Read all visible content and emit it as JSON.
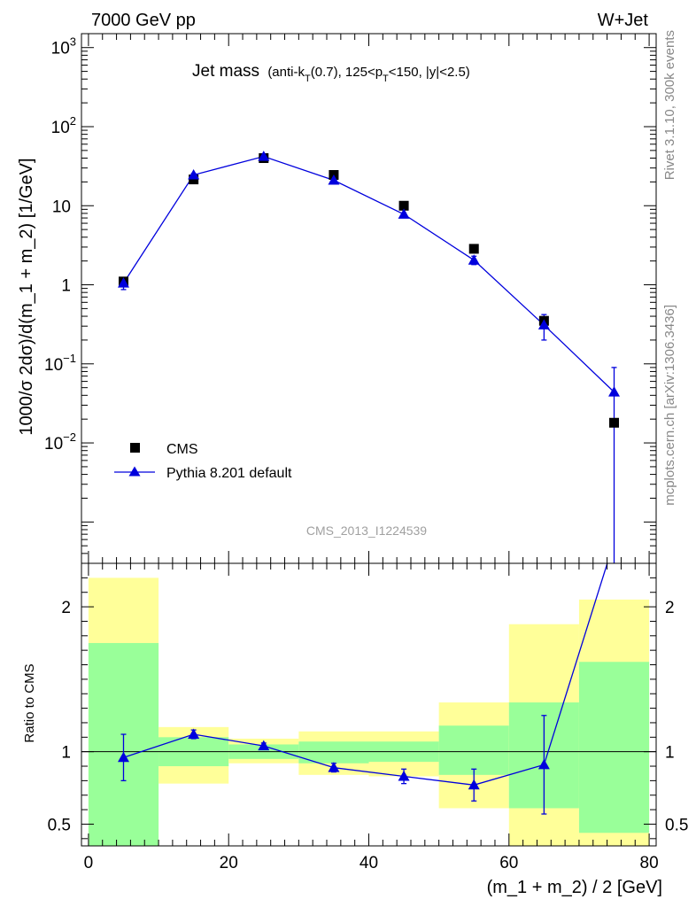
{
  "header": {
    "left_label": "7000 GeV pp",
    "right_label": "W+Jet"
  },
  "side_labels": {
    "top": "Rivet 3.1.10,  300k events",
    "bottom": "mcplots.cern.ch [arXiv:1306.3436]"
  },
  "watermark": "CMS_2013_I1224539",
  "colors": {
    "data": "#000000",
    "mc": "#0000dd",
    "band_inner": "#99ff99",
    "band_outer": "#ffff99"
  },
  "chart_data": [
    {
      "type": "scatter",
      "panel": "main",
      "title_main": "Jet mass",
      "title_detail_parts": [
        "(anti-k",
        "T",
        "(0.7), 125<p",
        "T",
        "<150, |y|<2.5)"
      ],
      "ylabel": "1000/σ 2dσ)/d(m_1 + m_2) [1/GeV]",
      "yscale": "log",
      "ylim": [
        0.0003,
        1500
      ],
      "xlim": [
        -1,
        81
      ],
      "ytick_labels": [
        {
          "value": 1000,
          "base": "10",
          "exp": "3"
        },
        {
          "value": 100,
          "base": "10",
          "exp": "2"
        },
        {
          "value": 10,
          "base": "10",
          "exp": ""
        },
        {
          "value": 1,
          "base": "1",
          "exp": ""
        },
        {
          "value": 0.1,
          "base": "10",
          "exp": "−1"
        },
        {
          "value": 0.01,
          "base": "10",
          "exp": "−2"
        }
      ],
      "legend_position": "lower-left",
      "series": [
        {
          "name": "CMS",
          "marker": "square",
          "x": [
            5,
            15,
            25,
            35,
            45,
            55,
            65,
            75
          ],
          "y": [
            1.1,
            21.5,
            40,
            24.5,
            10,
            2.85,
            0.35,
            0.018
          ]
        },
        {
          "name": "Pythia 8.201 default",
          "marker": "triangle",
          "x": [
            5,
            15,
            25,
            35,
            45,
            55,
            65,
            75
          ],
          "y": [
            1.05,
            24.5,
            42,
            21,
            7.8,
            2.05,
            0.31,
            0.044
          ],
          "yerr_low": [
            0.18,
            1.0,
            1.0,
            0.7,
            0.3,
            0.25,
            0.11,
            0.044
          ],
          "yerr_high": [
            0.18,
            1.0,
            1.0,
            0.7,
            0.3,
            0.25,
            0.11,
            0.046
          ]
        }
      ]
    },
    {
      "type": "line",
      "panel": "ratio",
      "ylabel": "Ratio to CMS",
      "xlabel": "(m_1 + m_2) / 2 [GeV]",
      "ylim": [
        0.35,
        2.3
      ],
      "xlim": [
        -1,
        81
      ],
      "ytick_labels": [
        {
          "value": 2,
          "label": "2"
        },
        {
          "value": 1,
          "label": "1"
        },
        {
          "value": 0.5,
          "label": "0.5"
        }
      ],
      "xtick_labels": [
        {
          "value": 0,
          "label": "0"
        },
        {
          "value": 20,
          "label": "20"
        },
        {
          "value": 40,
          "label": "40"
        },
        {
          "value": 60,
          "label": "60"
        },
        {
          "value": 80,
          "label": "80"
        }
      ],
      "bands": [
        {
          "x0": 0,
          "x1": 10,
          "inner": [
            0.35,
            1.75
          ],
          "outer": [
            0.35,
            2.2
          ]
        },
        {
          "x0": 10,
          "x1": 20,
          "inner": [
            0.9,
            1.1
          ],
          "outer": [
            0.78,
            1.17
          ]
        },
        {
          "x0": 20,
          "x1": 30,
          "inner": [
            0.95,
            1.05
          ],
          "outer": [
            0.92,
            1.09
          ]
        },
        {
          "x0": 30,
          "x1": 40,
          "inner": [
            0.92,
            1.07
          ],
          "outer": [
            0.84,
            1.14
          ]
        },
        {
          "x0": 40,
          "x1": 50,
          "inner": [
            0.93,
            1.07
          ],
          "outer": [
            0.83,
            1.14
          ]
        },
        {
          "x0": 50,
          "x1": 60,
          "inner": [
            0.84,
            1.18
          ],
          "outer": [
            0.61,
            1.34
          ]
        },
        {
          "x0": 60,
          "x1": 70,
          "inner": [
            0.61,
            1.34
          ],
          "outer": [
            0.35,
            1.88
          ]
        },
        {
          "x0": 70,
          "x1": 80,
          "inner": [
            0.44,
            1.62
          ],
          "outer": [
            0.35,
            2.05
          ]
        }
      ],
      "series": [
        {
          "name": "Pythia 8.201 default / CMS",
          "x": [
            5,
            15,
            25,
            35,
            45,
            55,
            65,
            75
          ],
          "y": [
            0.96,
            1.12,
            1.04,
            0.89,
            0.83,
            0.77,
            0.91,
            2.45
          ],
          "yerr_low": [
            0.16,
            0.03,
            0.02,
            0.03,
            0.05,
            0.11,
            0.34,
            0
          ],
          "yerr_high": [
            0.16,
            0.03,
            0.02,
            0.03,
            0.05,
            0.11,
            0.34,
            0
          ]
        }
      ]
    }
  ]
}
